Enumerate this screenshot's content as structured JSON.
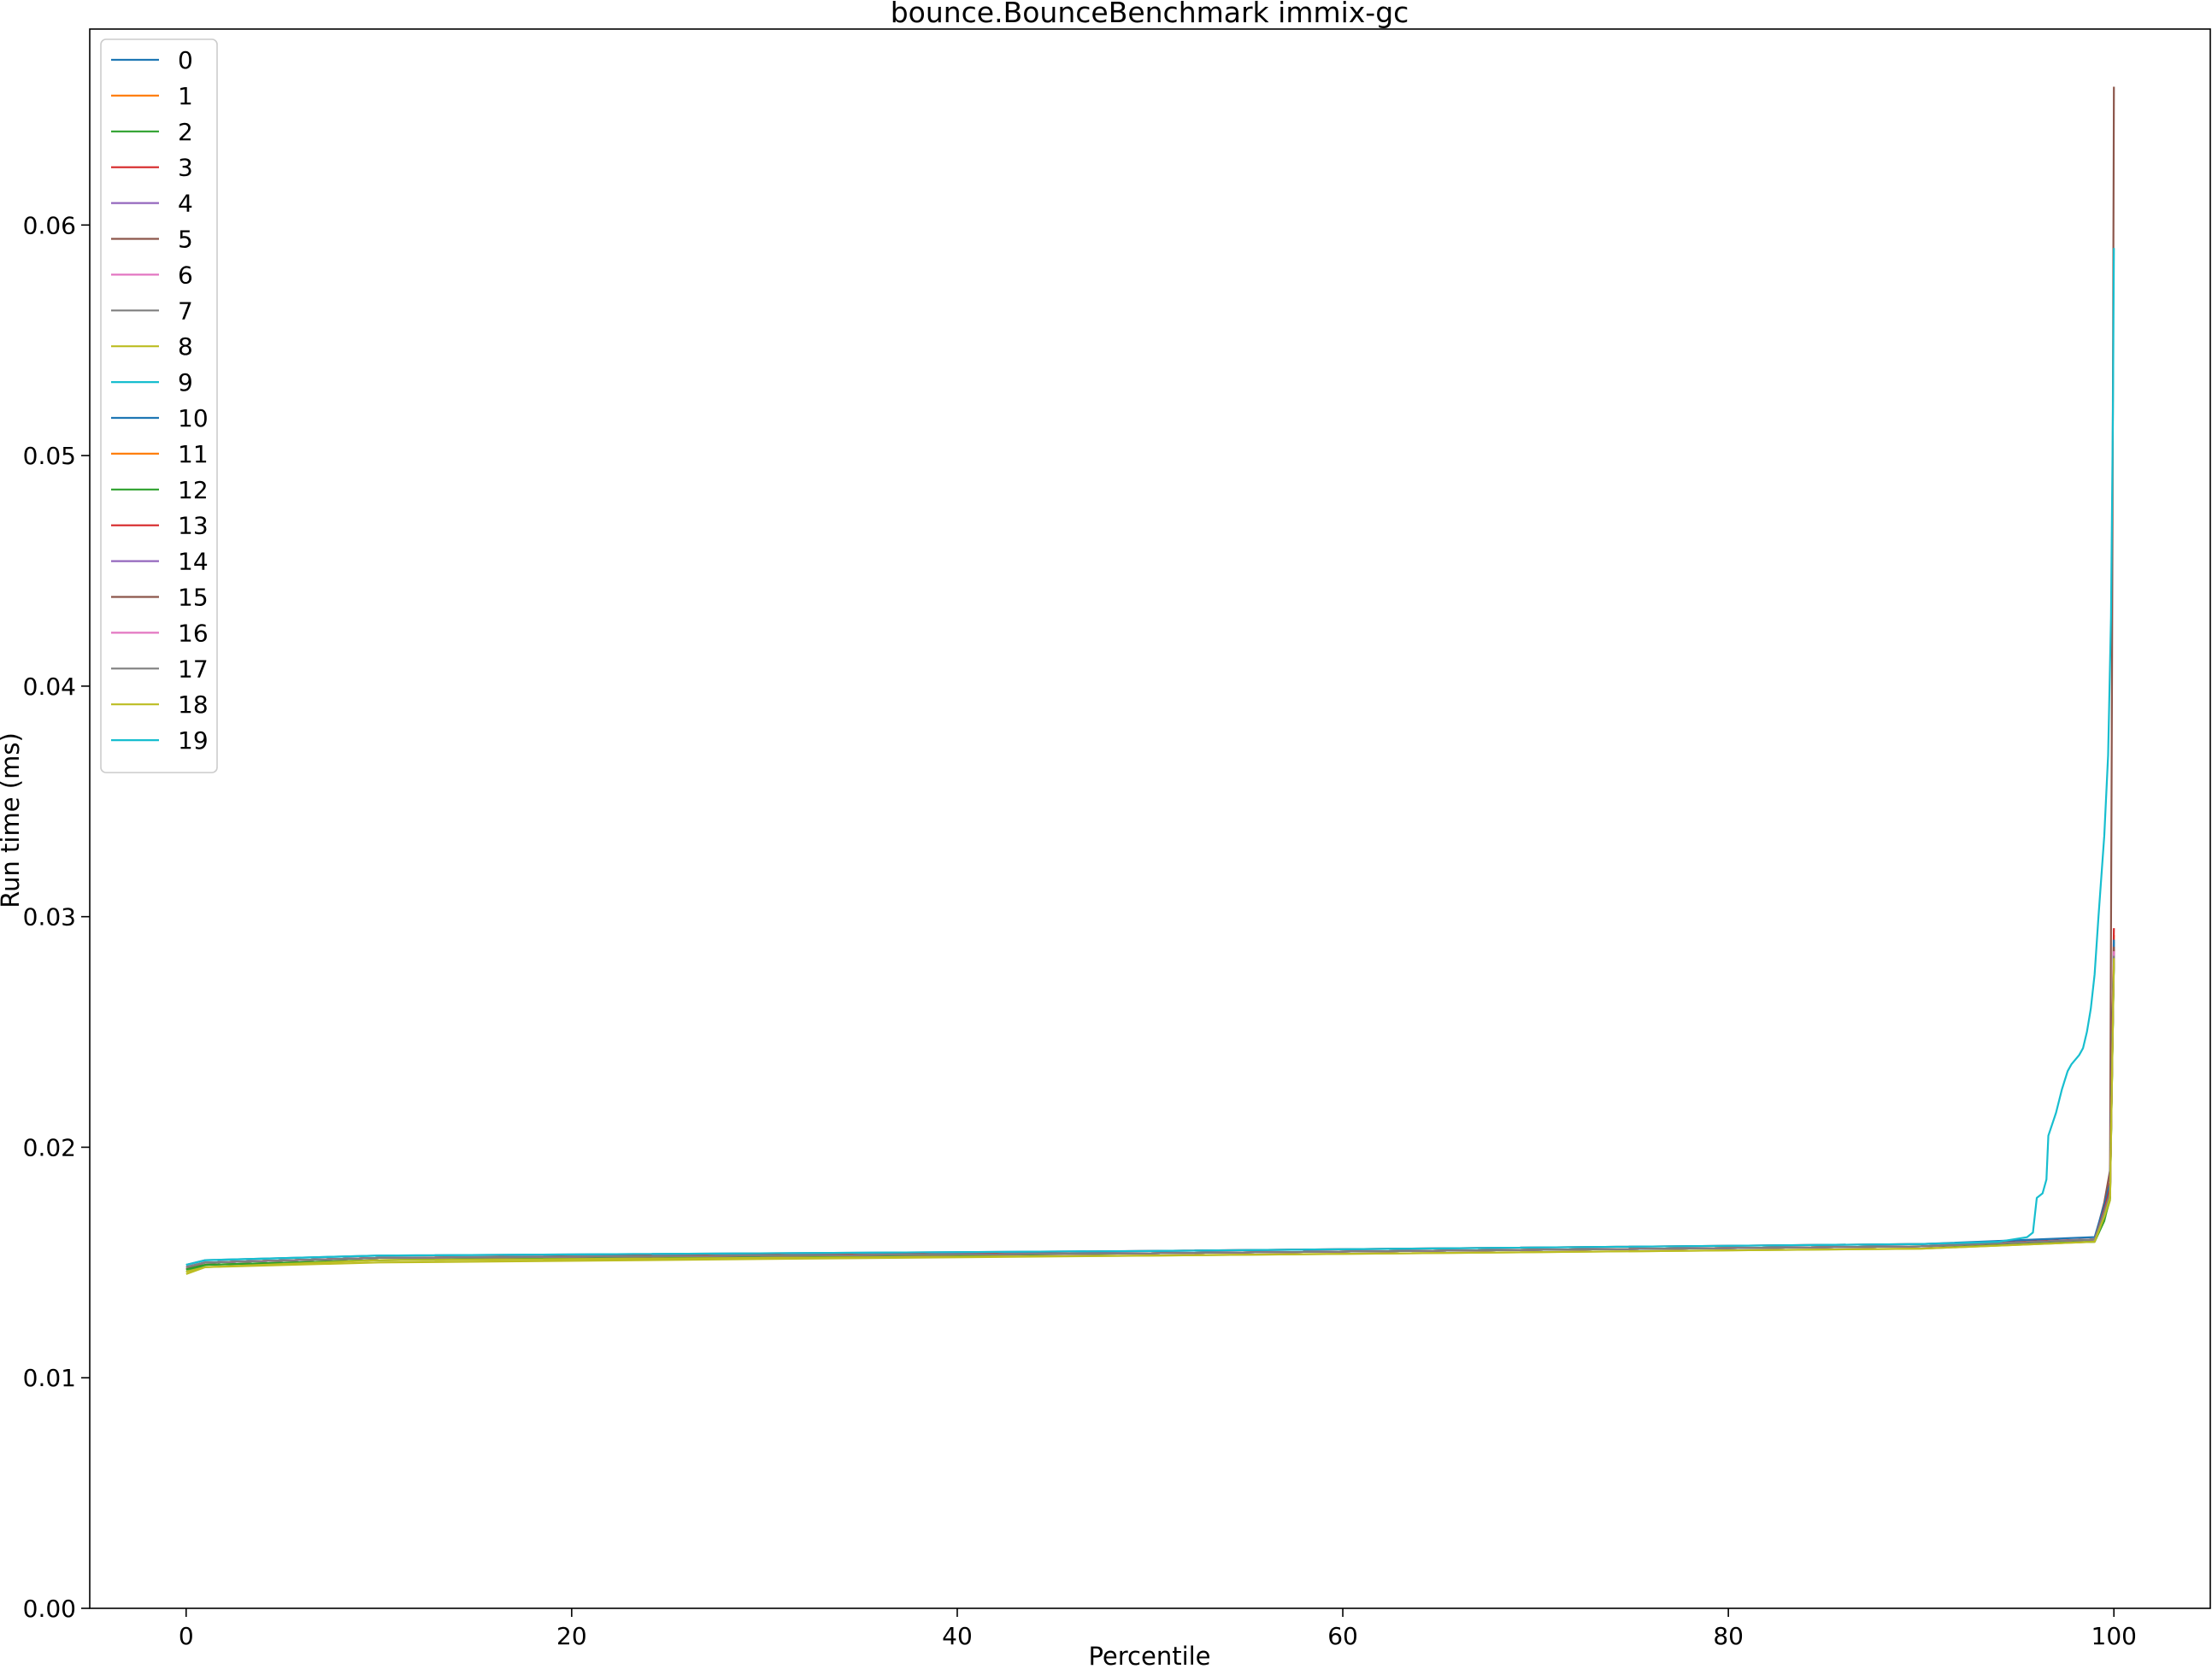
{
  "chart_data": {
    "type": "line",
    "title": "bounce.BounceBenchmark immix-gc",
    "xlabel": "Percentile",
    "ylabel": "Run time (ms)",
    "xlim": [
      -5,
      105
    ],
    "ylim": [
      0,
      0.0685
    ],
    "xticks": [
      0,
      20,
      40,
      60,
      80,
      100
    ],
    "xtick_labels": [
      "0",
      "20",
      "40",
      "60",
      "80",
      "100"
    ],
    "yticks": [
      0,
      0.01,
      0.02,
      0.03,
      0.04,
      0.05,
      0.06
    ],
    "ytick_labels": [
      "0.00",
      "0.01",
      "0.02",
      "0.03",
      "0.04",
      "0.05",
      "0.06"
    ],
    "grid": false,
    "legend_position": "top-left",
    "series": [
      {
        "name": "0",
        "color": "#1f77b4",
        "points": [
          [
            0,
            0.0148
          ],
          [
            1,
            0.015
          ],
          [
            10,
            0.0152
          ],
          [
            50,
            0.0154
          ],
          [
            90,
            0.0157
          ],
          [
            99,
            0.016
          ],
          [
            99.5,
            0.0172
          ],
          [
            99.8,
            0.018
          ],
          [
            100,
            0.0282
          ]
        ]
      },
      {
        "name": "1",
        "color": "#ff7f0e",
        "points": [
          [
            0,
            0.0147
          ],
          [
            1,
            0.0149
          ],
          [
            10,
            0.0151
          ],
          [
            50,
            0.0154
          ],
          [
            90,
            0.0157
          ],
          [
            99,
            0.0159
          ],
          [
            99.5,
            0.017
          ],
          [
            99.8,
            0.0182
          ],
          [
            100,
            0.0292
          ]
        ]
      },
      {
        "name": "2",
        "color": "#2ca02c",
        "points": [
          [
            0,
            0.0146
          ],
          [
            1,
            0.0149
          ],
          [
            10,
            0.0151
          ],
          [
            50,
            0.0154
          ],
          [
            90,
            0.0157
          ],
          [
            99,
            0.0159
          ],
          [
            99.5,
            0.0168
          ],
          [
            99.8,
            0.0178
          ],
          [
            100,
            0.028
          ]
        ]
      },
      {
        "name": "3",
        "color": "#d62728",
        "points": [
          [
            0,
            0.0148
          ],
          [
            1,
            0.015
          ],
          [
            10,
            0.0152
          ],
          [
            50,
            0.0155
          ],
          [
            90,
            0.0158
          ],
          [
            99,
            0.016
          ],
          [
            99.5,
            0.0175
          ],
          [
            99.8,
            0.0185
          ],
          [
            100,
            0.0295
          ]
        ]
      },
      {
        "name": "4",
        "color": "#9467bd",
        "points": [
          [
            0,
            0.0148
          ],
          [
            1,
            0.015
          ],
          [
            10,
            0.0152
          ],
          [
            50,
            0.0154
          ],
          [
            90,
            0.0157
          ],
          [
            99,
            0.016
          ],
          [
            99.5,
            0.0171
          ],
          [
            99.8,
            0.0179
          ],
          [
            100,
            0.0285
          ]
        ]
      },
      {
        "name": "5",
        "color": "#8c564b",
        "points": [
          [
            0,
            0.0147
          ],
          [
            1,
            0.015
          ],
          [
            10,
            0.0152
          ],
          [
            50,
            0.0154
          ],
          [
            90,
            0.0157
          ],
          [
            99,
            0.016
          ],
          [
            99.5,
            0.0176
          ],
          [
            99.8,
            0.019
          ],
          [
            99.9,
            0.04
          ],
          [
            100,
            0.066
          ]
        ]
      },
      {
        "name": "6",
        "color": "#e377c2",
        "points": [
          [
            0,
            0.0148
          ],
          [
            1,
            0.015
          ],
          [
            10,
            0.0152
          ],
          [
            50,
            0.0154
          ],
          [
            90,
            0.0157
          ],
          [
            99,
            0.016
          ],
          [
            99.5,
            0.017
          ],
          [
            99.8,
            0.018
          ],
          [
            100,
            0.0288
          ]
        ]
      },
      {
        "name": "7",
        "color": "#7f7f7f",
        "points": [
          [
            0,
            0.0148
          ],
          [
            1,
            0.015
          ],
          [
            10,
            0.0152
          ],
          [
            50,
            0.0154
          ],
          [
            90,
            0.0157
          ],
          [
            99,
            0.016
          ],
          [
            99.5,
            0.0172
          ],
          [
            99.8,
            0.0181
          ],
          [
            100,
            0.0284
          ]
        ]
      },
      {
        "name": "8",
        "color": "#bcbd22",
        "points": [
          [
            0,
            0.0145
          ],
          [
            1,
            0.0148
          ],
          [
            10,
            0.015
          ],
          [
            50,
            0.0153
          ],
          [
            90,
            0.0156
          ],
          [
            99,
            0.0159
          ],
          [
            99.5,
            0.0169
          ],
          [
            99.8,
            0.0177
          ],
          [
            100,
            0.0281
          ]
        ]
      },
      {
        "name": "9",
        "color": "#17becf",
        "points": [
          [
            0,
            0.0148
          ],
          [
            1,
            0.015
          ],
          [
            10,
            0.0152
          ],
          [
            50,
            0.0154
          ],
          [
            90,
            0.0157
          ],
          [
            99,
            0.016
          ],
          [
            99.5,
            0.0174
          ],
          [
            99.8,
            0.0183
          ],
          [
            100,
            0.0289
          ]
        ]
      },
      {
        "name": "10",
        "color": "#1f77b4",
        "points": [
          [
            0,
            0.0149
          ],
          [
            1,
            0.0151
          ],
          [
            10,
            0.0153
          ],
          [
            50,
            0.0155
          ],
          [
            90,
            0.0158
          ],
          [
            99,
            0.0161
          ],
          [
            99.5,
            0.0175
          ],
          [
            99.8,
            0.0184
          ],
          [
            100,
            0.029
          ]
        ]
      },
      {
        "name": "11",
        "color": "#ff7f0e",
        "points": [
          [
            0,
            0.0148
          ],
          [
            1,
            0.015
          ],
          [
            10,
            0.0152
          ],
          [
            50,
            0.0154
          ],
          [
            90,
            0.0157
          ],
          [
            99,
            0.016
          ],
          [
            99.5,
            0.0171
          ],
          [
            99.8,
            0.0179
          ],
          [
            100,
            0.0283
          ]
        ]
      },
      {
        "name": "12",
        "color": "#2ca02c",
        "points": [
          [
            0,
            0.0147
          ],
          [
            1,
            0.0149
          ],
          [
            10,
            0.0151
          ],
          [
            50,
            0.0154
          ],
          [
            90,
            0.0157
          ],
          [
            99,
            0.0159
          ],
          [
            99.5,
            0.0169
          ],
          [
            99.8,
            0.0178
          ],
          [
            100,
            0.0282
          ]
        ]
      },
      {
        "name": "13",
        "color": "#d62728",
        "points": [
          [
            0,
            0.0148
          ],
          [
            1,
            0.015
          ],
          [
            10,
            0.0152
          ],
          [
            50,
            0.0154
          ],
          [
            90,
            0.0157
          ],
          [
            99,
            0.016
          ],
          [
            99.5,
            0.0173
          ],
          [
            99.8,
            0.0182
          ],
          [
            100,
            0.0286
          ]
        ]
      },
      {
        "name": "14",
        "color": "#9467bd",
        "points": [
          [
            0,
            0.0148
          ],
          [
            1,
            0.015
          ],
          [
            10,
            0.0152
          ],
          [
            50,
            0.0154
          ],
          [
            90,
            0.0157
          ],
          [
            99,
            0.016
          ],
          [
            99.5,
            0.0172
          ],
          [
            99.8,
            0.018
          ],
          [
            100,
            0.0284
          ]
        ]
      },
      {
        "name": "15",
        "color": "#8c564b",
        "points": [
          [
            0,
            0.0148
          ],
          [
            1,
            0.015
          ],
          [
            10,
            0.0152
          ],
          [
            50,
            0.0154
          ],
          [
            90,
            0.0157
          ],
          [
            99,
            0.016
          ],
          [
            99.5,
            0.0171
          ],
          [
            99.8,
            0.0181
          ],
          [
            100,
            0.0287
          ]
        ]
      },
      {
        "name": "16",
        "color": "#e377c2",
        "points": [
          [
            0,
            0.0148
          ],
          [
            1,
            0.015
          ],
          [
            10,
            0.0152
          ],
          [
            50,
            0.0154
          ],
          [
            90,
            0.0157
          ],
          [
            99,
            0.016
          ],
          [
            99.5,
            0.017
          ],
          [
            99.8,
            0.0179
          ],
          [
            100,
            0.0285
          ]
        ]
      },
      {
        "name": "17",
        "color": "#7f7f7f",
        "points": [
          [
            0,
            0.0148
          ],
          [
            1,
            0.015
          ],
          [
            10,
            0.0152
          ],
          [
            50,
            0.0154
          ],
          [
            90,
            0.0157
          ],
          [
            99,
            0.016
          ],
          [
            99.5,
            0.0172
          ],
          [
            99.8,
            0.018
          ],
          [
            100,
            0.0283
          ]
        ]
      },
      {
        "name": "18",
        "color": "#bcbd22",
        "points": [
          [
            0,
            0.0146
          ],
          [
            1,
            0.0148
          ],
          [
            10,
            0.0151
          ],
          [
            50,
            0.0153
          ],
          [
            90,
            0.0156
          ],
          [
            99,
            0.0159
          ],
          [
            99.5,
            0.017
          ],
          [
            99.8,
            0.0178
          ],
          [
            100,
            0.0282
          ]
        ]
      },
      {
        "name": "19",
        "color": "#17becf",
        "points": [
          [
            0,
            0.0149
          ],
          [
            1,
            0.0151
          ],
          [
            10,
            0.0153
          ],
          [
            50,
            0.0155
          ],
          [
            90,
            0.0158
          ],
          [
            94,
            0.0159
          ],
          [
            95.5,
            0.0161
          ],
          [
            95.8,
            0.0163
          ],
          [
            96,
            0.0178
          ],
          [
            96.3,
            0.018
          ],
          [
            96.5,
            0.0186
          ],
          [
            96.6,
            0.0205
          ],
          [
            97,
            0.0215
          ],
          [
            97.3,
            0.0225
          ],
          [
            97.6,
            0.0233
          ],
          [
            97.8,
            0.0236
          ],
          [
            98.2,
            0.024
          ],
          [
            98.4,
            0.0243
          ],
          [
            98.6,
            0.025
          ],
          [
            98.8,
            0.026
          ],
          [
            99.0,
            0.0275
          ],
          [
            99.2,
            0.03
          ],
          [
            99.5,
            0.0335
          ],
          [
            99.7,
            0.037
          ],
          [
            99.85,
            0.043
          ],
          [
            99.95,
            0.052
          ],
          [
            100,
            0.059
          ]
        ]
      }
    ]
  }
}
